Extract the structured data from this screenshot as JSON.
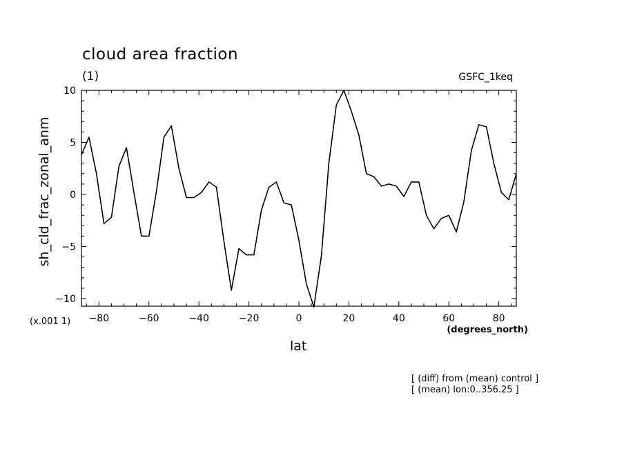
{
  "chart_data": {
    "type": "line",
    "title": "cloud area fraction",
    "units": "(1)",
    "run_label": "GSFC_1keq",
    "ylabel": "sh_cld_frac_zonal_anm",
    "xlabel": "lat",
    "x_units": "(degrees_north)",
    "scale_note": "(x.001 1)",
    "notes": [
      "[ (diff) from (mean) control ]",
      "[ (mean) lon:0..356.25 ]"
    ],
    "xlim": [
      -87,
      87
    ],
    "ylim": [
      -10.8,
      10
    ],
    "x_ticks": [
      -80,
      -60,
      -40,
      -20,
      0,
      20,
      40,
      60,
      80
    ],
    "x_tick_labels": [
      "−80",
      "−60",
      "−40",
      "−20",
      "0",
      "20",
      "40",
      "60",
      "80"
    ],
    "y_ticks": [
      10,
      5,
      0,
      -5,
      -10
    ],
    "y_tick_labels": [
      "10",
      "5",
      "0",
      "−5",
      "−10"
    ],
    "grid": false,
    "line_color": "#000000",
    "series": [
      {
        "x": [
          -87,
          -84,
          -81,
          -78,
          -75,
          -72,
          -69,
          -66,
          -63,
          -60,
          -57,
          -54,
          -51,
          -48,
          -45,
          -42,
          -39,
          -36,
          -33,
          -30,
          -27,
          -24,
          -21,
          -18,
          -15,
          -12,
          -9,
          -6,
          -3,
          0,
          3,
          6,
          9,
          12,
          15,
          18,
          21,
          24,
          27,
          30,
          33,
          36,
          39,
          42,
          45,
          48,
          51,
          54,
          57,
          60,
          63,
          66,
          69,
          72,
          75,
          78,
          81,
          84,
          87
        ],
        "values": [
          3.8,
          5.5,
          2.0,
          -2.8,
          -2.2,
          2.7,
          4.5,
          0.2,
          -4.0,
          -4.0,
          0.3,
          5.5,
          6.6,
          2.5,
          -0.3,
          -0.3,
          0.2,
          1.2,
          0.7,
          -4.5,
          -9.2,
          -5.2,
          -5.8,
          -5.8,
          -1.5,
          0.7,
          1.2,
          -0.8,
          -1.0,
          -4.4,
          -8.6,
          -10.8,
          -5.9,
          3.0,
          8.6,
          10.0,
          8.0,
          5.7,
          2.0,
          1.7,
          0.8,
          1.0,
          0.8,
          -0.2,
          1.2,
          1.2,
          -2.0,
          -3.3,
          -2.3,
          -2.0,
          -3.6,
          -0.7,
          4.2,
          6.7,
          6.5,
          3.0,
          0.2,
          -0.5,
          2.0
        ]
      }
    ]
  }
}
